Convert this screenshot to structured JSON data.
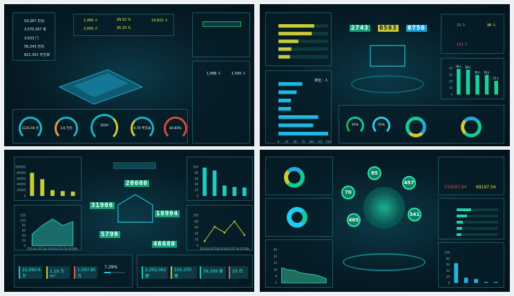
{
  "q1": {
    "left_stats": [
      "53,267 万元",
      "3,570,267 本",
      "3,633 门",
      "56,243 万元",
      "621,301 平方米"
    ],
    "top_stats": [
      "1,465 人",
      "2,050 人",
      "99.92 %",
      "95.25 %",
      "19,822 人"
    ],
    "right_stats": [
      "1,998 人",
      "1,500 人"
    ],
    "gauges": [
      "2225.00 元",
      "3.6 万元",
      "2020",
      "6.76 平方米",
      "84.83%"
    ]
  },
  "q2": {
    "counters": [
      "2743",
      "0563",
      "0756"
    ],
    "right_stats": [
      "23 人",
      "98 人",
      "123 人"
    ],
    "gauges": [
      "45%",
      "55%"
    ],
    "unit": "单位：人"
  },
  "q3": {
    "counters": [
      "20606",
      "31906",
      "18994",
      "5790",
      "46680"
    ],
    "bottom_stats": [
      "22,060.6 万",
      "1.19 万m²",
      "1,597.85 万",
      "7.29%",
      "2,202,062 册",
      "102,370 册",
      "39,309 册",
      "20 台"
    ],
    "progress": 0.3
  },
  "q4": {
    "bubbles": [
      "85",
      "457",
      "70",
      "341",
      "465"
    ],
    "money": [
      "234567.94",
      "69197.54"
    ]
  },
  "chart_data": [
    {
      "type": "bar",
      "id": "q2-vbar",
      "values": [
        39,
        38,
        30,
        30,
        21
      ],
      "labels": [
        "39人",
        "38人",
        "30人",
        "30人",
        "21人"
      ],
      "ylim": [
        0,
        40
      ],
      "yticks": [
        0,
        10,
        20,
        30,
        40
      ],
      "color": "#19d39a"
    },
    {
      "type": "bar",
      "id": "q2-hbar",
      "orientation": "horizontal",
      "values": [
        72,
        55,
        38,
        38,
        120,
        105,
        150
      ],
      "xlim": [
        0,
        150
      ],
      "xticks": [
        0,
        25,
        50,
        75,
        100,
        125,
        150
      ],
      "color": "#1fb6e0"
    },
    {
      "type": "bar",
      "id": "q2-ybar",
      "orientation": "horizontal",
      "values": [
        0.72,
        0.67,
        0.4,
        0.26,
        0.23
      ],
      "color": "#c8cc3a"
    },
    {
      "type": "bar",
      "id": "q3-bar1",
      "values": [
        80000,
        58000,
        20000,
        17000,
        15000
      ],
      "ylim": [
        0,
        100000
      ],
      "yticks": [
        0,
        20000,
        40000,
        60000,
        80000,
        100000
      ],
      "color": "#c9c93a"
    },
    {
      "type": "bar",
      "id": "q3-bar2",
      "values": [
        98,
        88,
        36,
        31,
        29
      ],
      "ylim": [
        0,
        100
      ],
      "yticks": [
        0,
        20,
        40,
        60,
        80,
        100
      ],
      "color": "#20c9c4"
    },
    {
      "type": "area",
      "id": "q3-area",
      "x": [
        "2014年",
        "2015年",
        "2016年",
        "2017年",
        "2018年"
      ],
      "values": [
        45,
        80,
        105,
        80,
        95
      ],
      "ylim": [
        0,
        120
      ],
      "yticks": [
        0,
        20,
        40,
        60,
        80,
        100,
        120
      ],
      "color": "#1a6b6a"
    },
    {
      "type": "line",
      "id": "q3-line",
      "x": [
        "2014年",
        "2015年",
        "2016年",
        "2017年",
        "2018年"
      ],
      "values": [
        15,
        62,
        43,
        80,
        35
      ],
      "ylim": [
        0,
        100
      ],
      "yticks": [
        0,
        20,
        40,
        60,
        80,
        100
      ],
      "color": "#c8cc3a"
    },
    {
      "type": "bar",
      "id": "q4-bar",
      "values": [
        65,
        17,
        13,
        3,
        3
      ],
      "ylim": [
        0,
        100
      ],
      "yticks": [
        0,
        20,
        40,
        60,
        80,
        100
      ],
      "color": "#1fb6e0"
    },
    {
      "type": "area",
      "id": "q4-area",
      "values": [
        18,
        16,
        15,
        12,
        11,
        10,
        8,
        5
      ],
      "ylim": [
        0,
        40
      ],
      "yticks": [
        0,
        8,
        16,
        24,
        32,
        40
      ],
      "color": "#1f6f5c"
    }
  ]
}
